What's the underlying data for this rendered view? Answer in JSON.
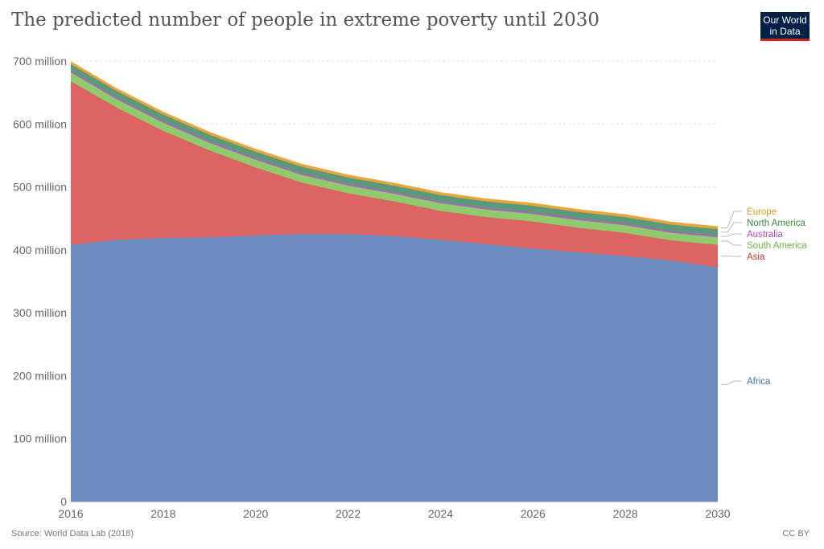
{
  "title": "The predicted number of people in extreme poverty until 2030",
  "logo": {
    "line1": "Our World",
    "line2": "in Data"
  },
  "source": "Source: World Data Lab (2018)",
  "license": "CC BY",
  "chart_data": {
    "type": "area",
    "stacked": true,
    "title": "The predicted number of people in extreme poverty until 2030",
    "x": [
      2016,
      2017,
      2018,
      2019,
      2020,
      2021,
      2022,
      2023,
      2024,
      2025,
      2026,
      2027,
      2028,
      2029,
      2030
    ],
    "xlim": [
      2016,
      2030
    ],
    "x_ticks": [
      "2016",
      "2018",
      "2020",
      "2022",
      "2024",
      "2026",
      "2028",
      "2030"
    ],
    "ylim": [
      0,
      700
    ],
    "y_ticks": [
      "0",
      "100 million",
      "200 million",
      "300 million",
      "400 million",
      "500 million",
      "600 million",
      "700 million"
    ],
    "grid": "horizontal dotted",
    "legend_position": "right, labels at series ends",
    "series": [
      {
        "name": "Africa",
        "color": "#6d8dc0",
        "values": [
          408,
          416,
          419,
          420,
          423,
          425,
          425,
          422,
          416,
          409,
          402,
          396,
          390,
          383,
          372
        ]
      },
      {
        "name": "Asia",
        "color": "#dc6462",
        "values": [
          260,
          210,
          170,
          138,
          108,
          82,
          65,
          55,
          46,
          43,
          43,
          39,
          37,
          32,
          36
        ]
      },
      {
        "name": "South America",
        "color": "#8fcb6d",
        "values": [
          14,
          13,
          13,
          12,
          12,
          12,
          12,
          12,
          12,
          12,
          12,
          12,
          12,
          12,
          12
        ]
      },
      {
        "name": "Australia",
        "color": "#a56ab5",
        "values": [
          3,
          3,
          3,
          3,
          3,
          3,
          3,
          3,
          3,
          3,
          3,
          3,
          3,
          3,
          3
        ]
      },
      {
        "name": "North America",
        "color": "#5b9a78",
        "values": [
          10,
          10,
          10,
          10,
          10,
          10,
          10,
          10,
          10,
          10,
          10,
          10,
          10,
          10,
          10
        ]
      },
      {
        "name": "Europe",
        "color": "#e8a53c",
        "values": [
          4,
          4,
          4,
          4,
          4,
          4,
          4,
          4,
          4,
          4,
          4,
          4,
          4,
          4,
          4
        ]
      }
    ],
    "legend_label_colors": {
      "Europe": "#e39a18",
      "North America": "#3d8a3d",
      "Australia": "#b045b8",
      "South America": "#6eb43f",
      "Asia": "#c8352d",
      "Africa": "#4a6fa5"
    }
  }
}
